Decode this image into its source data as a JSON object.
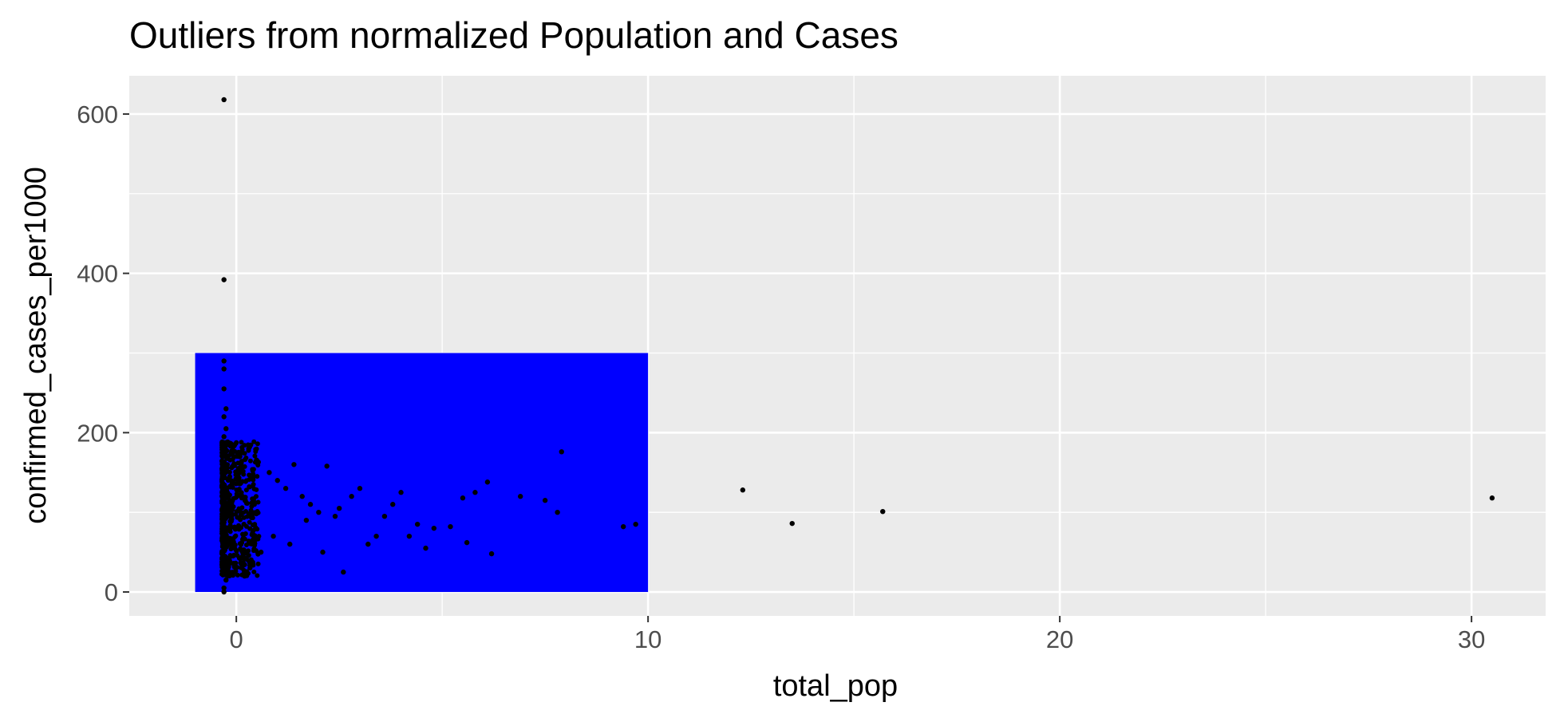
{
  "chart_data": {
    "type": "scatter",
    "title": "Outliers from normalized Population and Cases",
    "xlabel": "total_pop",
    "ylabel": "confirmed_cases_per1000",
    "xlim": [
      -2.6,
      31.8
    ],
    "ylim": [
      -30,
      648
    ],
    "x_ticks": [
      0,
      10,
      20,
      30
    ],
    "x_tick_labels": [
      "0",
      "10",
      "20",
      "30"
    ],
    "y_ticks": [
      0,
      200,
      400,
      600
    ],
    "y_tick_labels": [
      "0",
      "200",
      "400",
      "600"
    ],
    "grid": true,
    "panel_background": "#ebebeb",
    "grid_color": "#ffffff",
    "highlight_rect": {
      "xmin": -1,
      "xmax": 10,
      "ymin": 0,
      "ymax": 300,
      "color": "#0000ff"
    },
    "point_color": "#000000",
    "outliers": [
      {
        "x": -0.3,
        "y": 618
      },
      {
        "x": -0.3,
        "y": 392
      },
      {
        "x": 12.3,
        "y": 128
      },
      {
        "x": 13.5,
        "y": 86
      },
      {
        "x": 15.7,
        "y": 101
      },
      {
        "x": 30.5,
        "y": 118
      }
    ],
    "points": [
      {
        "x": -0.3,
        "y": 290
      },
      {
        "x": -0.3,
        "y": 280
      },
      {
        "x": -0.3,
        "y": 255
      },
      {
        "x": -0.25,
        "y": 230
      },
      {
        "x": -0.3,
        "y": 220
      },
      {
        "x": -0.25,
        "y": 205
      },
      {
        "x": -0.3,
        "y": 195
      },
      {
        "x": -0.2,
        "y": 185
      },
      {
        "x": -0.3,
        "y": 5
      },
      {
        "x": -0.3,
        "y": 0
      },
      {
        "x": -0.25,
        "y": 15
      },
      {
        "x": -0.2,
        "y": 30
      },
      {
        "x": 0.1,
        "y": 175
      },
      {
        "x": 0.3,
        "y": 180
      },
      {
        "x": 0.5,
        "y": 165
      },
      {
        "x": 0.2,
        "y": 20
      },
      {
        "x": 0.4,
        "y": 35
      },
      {
        "x": 0.6,
        "y": 50
      },
      {
        "x": 0.8,
        "y": 150
      },
      {
        "x": 1.0,
        "y": 140
      },
      {
        "x": 1.2,
        "y": 130
      },
      {
        "x": 1.4,
        "y": 160
      },
      {
        "x": 1.6,
        "y": 120
      },
      {
        "x": 1.8,
        "y": 110
      },
      {
        "x": 2.0,
        "y": 100
      },
      {
        "x": 2.2,
        "y": 158
      },
      {
        "x": 2.4,
        "y": 95
      },
      {
        "x": 2.6,
        "y": 25
      },
      {
        "x": 2.8,
        "y": 120
      },
      {
        "x": 3.0,
        "y": 130
      },
      {
        "x": 3.2,
        "y": 60
      },
      {
        "x": 3.4,
        "y": 70
      },
      {
        "x": 3.6,
        "y": 95
      },
      {
        "x": 3.8,
        "y": 110
      },
      {
        "x": 4.0,
        "y": 125
      },
      {
        "x": 4.2,
        "y": 70
      },
      {
        "x": 4.4,
        "y": 85
      },
      {
        "x": 4.6,
        "y": 55
      },
      {
        "x": 4.8,
        "y": 80
      },
      {
        "x": 5.2,
        "y": 82
      },
      {
        "x": 5.5,
        "y": 118
      },
      {
        "x": 5.6,
        "y": 62
      },
      {
        "x": 5.8,
        "y": 125
      },
      {
        "x": 6.1,
        "y": 138
      },
      {
        "x": 6.2,
        "y": 48
      },
      {
        "x": 6.9,
        "y": 120
      },
      {
        "x": 7.5,
        "y": 115
      },
      {
        "x": 7.8,
        "y": 100
      },
      {
        "x": 7.9,
        "y": 176
      },
      {
        "x": 9.4,
        "y": 82
      },
      {
        "x": 9.7,
        "y": 85
      },
      {
        "x": 2.1,
        "y": 50
      },
      {
        "x": 1.3,
        "y": 60
      },
      {
        "x": 0.9,
        "y": 70
      },
      {
        "x": 1.7,
        "y": 90
      },
      {
        "x": 2.5,
        "y": 105
      }
    ]
  }
}
